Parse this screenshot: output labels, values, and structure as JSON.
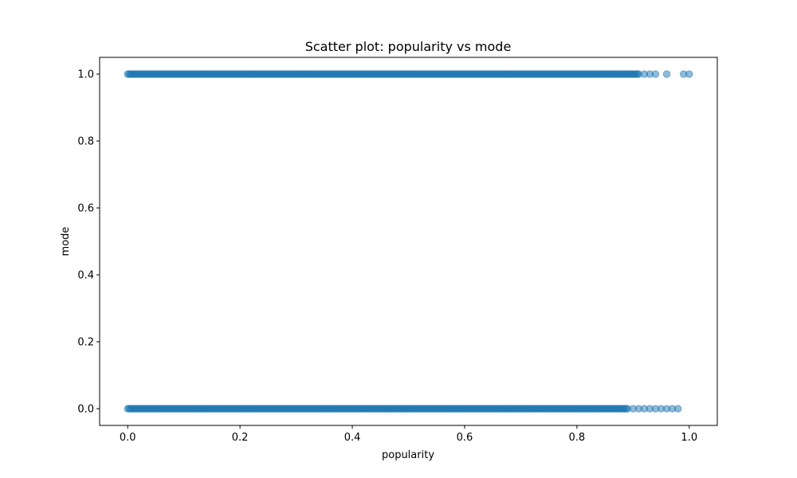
{
  "chart_data": {
    "type": "scatter",
    "title": "Scatter plot: popularity vs mode",
    "xlabel": "popularity",
    "ylabel": "mode",
    "xlim": [
      -0.05,
      1.05
    ],
    "ylim": [
      -0.05,
      1.05
    ],
    "x_ticks": [
      0.0,
      0.2,
      0.4,
      0.6,
      0.8,
      1.0
    ],
    "x_tick_labels": [
      "0.0",
      "0.2",
      "0.4",
      "0.6",
      "0.8",
      "1.0"
    ],
    "y_ticks": [
      0.0,
      0.2,
      0.4,
      0.6,
      0.8,
      1.0
    ],
    "y_tick_labels": [
      "0.0",
      "0.2",
      "0.4",
      "0.6",
      "0.8",
      "1.0"
    ],
    "grid": false,
    "marker_color": "#1f77b4",
    "marker_alpha": 0.5,
    "series": [
      {
        "name": "",
        "dense_ranges": [
          {
            "y": 1.0,
            "x_from": 0.0,
            "x_to": 0.91
          },
          {
            "y": 0.0,
            "x_from": 0.0,
            "x_to": 0.89
          }
        ],
        "points": [
          {
            "x": 0.92,
            "y": 1.0
          },
          {
            "x": 0.93,
            "y": 1.0
          },
          {
            "x": 0.94,
            "y": 1.0
          },
          {
            "x": 0.96,
            "y": 1.0
          },
          {
            "x": 0.99,
            "y": 1.0
          },
          {
            "x": 1.0,
            "y": 1.0
          },
          {
            "x": 0.9,
            "y": 0.0
          },
          {
            "x": 0.91,
            "y": 0.0
          },
          {
            "x": 0.92,
            "y": 0.0
          },
          {
            "x": 0.93,
            "y": 0.0
          },
          {
            "x": 0.94,
            "y": 0.0
          },
          {
            "x": 0.95,
            "y": 0.0
          },
          {
            "x": 0.96,
            "y": 0.0
          },
          {
            "x": 0.97,
            "y": 0.0
          },
          {
            "x": 0.98,
            "y": 0.0
          }
        ]
      }
    ]
  }
}
